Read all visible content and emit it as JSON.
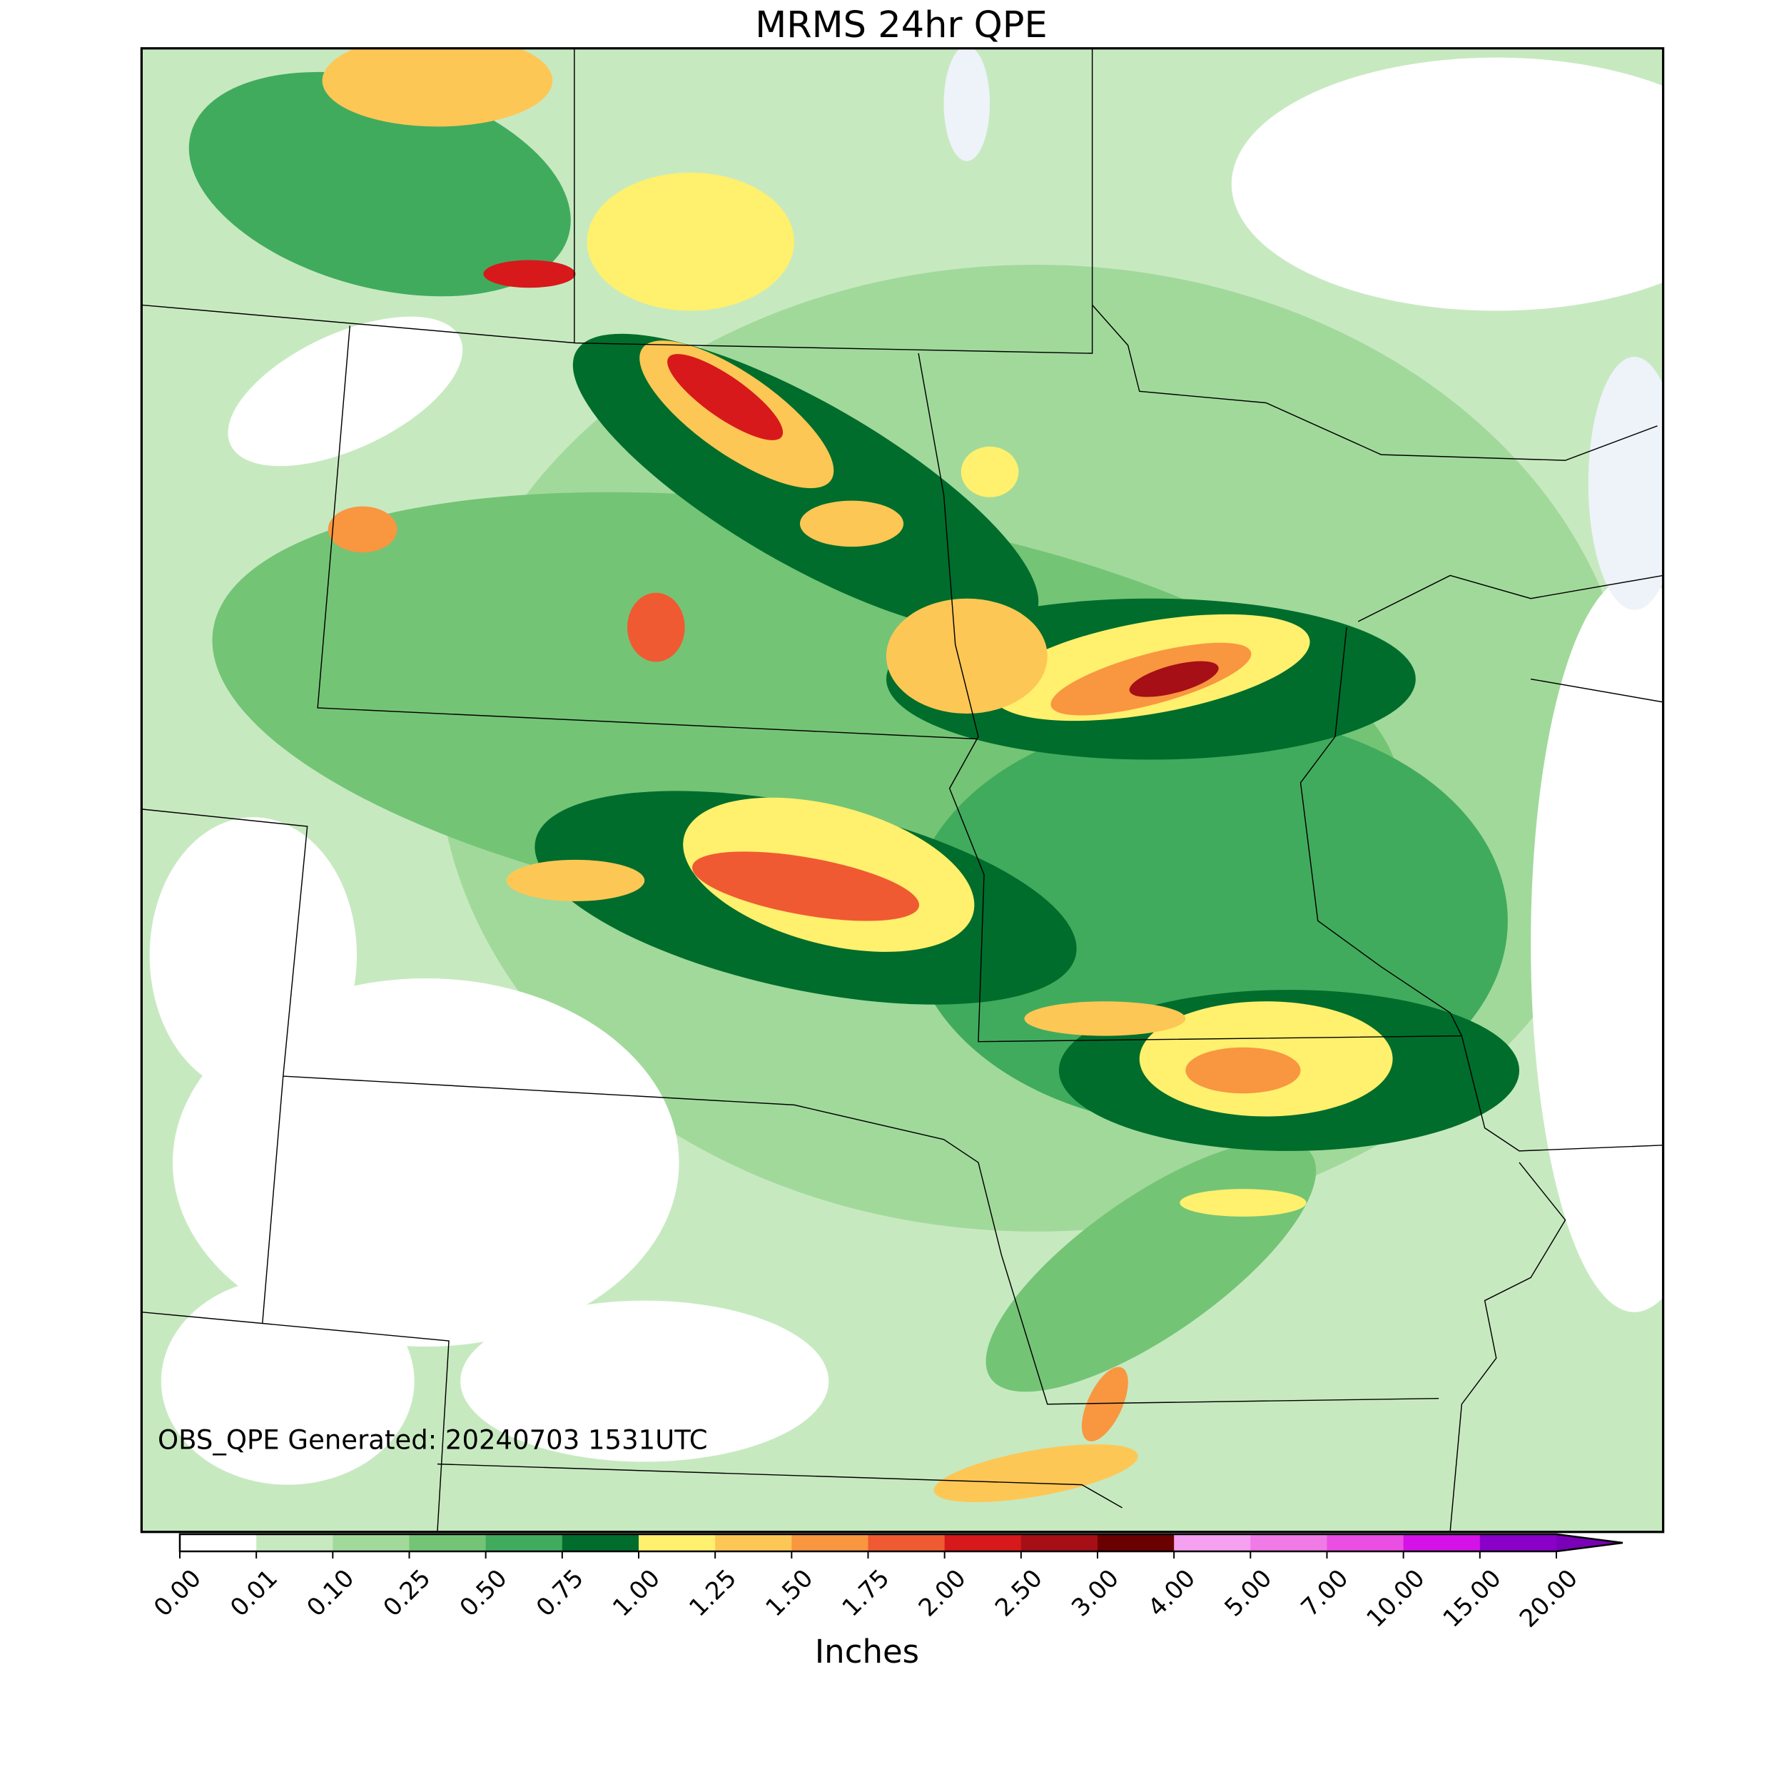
{
  "map": {
    "title": "MRMS 24hr QPE",
    "annotation": "OBS_QPE Generated: 20240703 1531UTC",
    "colorbar": {
      "label": "Inches",
      "ticks": [
        {
          "value": 0,
          "label": "0.00"
        },
        {
          "value": 0.01,
          "label": "0.01"
        },
        {
          "value": 0.1,
          "label": "0.10"
        },
        {
          "value": 0.25,
          "label": "0.25"
        },
        {
          "value": 0.5,
          "label": "0.50"
        },
        {
          "value": 0.75,
          "label": "0.75"
        },
        {
          "value": 1,
          "label": "1.00"
        },
        {
          "value": 1.25,
          "label": "1.25"
        },
        {
          "value": 1.5,
          "label": "1.50"
        },
        {
          "value": 1.75,
          "label": "1.75"
        },
        {
          "value": 2,
          "label": "2.00"
        },
        {
          "value": 2.5,
          "label": "2.50"
        },
        {
          "value": 3,
          "label": "3.00"
        },
        {
          "value": 4,
          "label": "4.00"
        },
        {
          "value": 5,
          "label": "5.00"
        },
        {
          "value": 7,
          "label": "7.00"
        },
        {
          "value": 10,
          "label": "10.00"
        },
        {
          "value": 15,
          "label": "15.00"
        },
        {
          "value": 20,
          "label": "20.00"
        }
      ],
      "colors": [
        "#ffffff",
        "#c7e9c0",
        "#a1d99b",
        "#74c476",
        "#41ab5d",
        "#006d2c",
        "#fff06e",
        "#fdc755",
        "#f99640",
        "#f05a32",
        "#d7191c",
        "#a50f15",
        "#6b0000",
        "#f5a0f0",
        "#f07ae6",
        "#ea4ee2",
        "#d412e8",
        "#8a00c8"
      ],
      "extend_color": "#7a00b8"
    }
  }
}
